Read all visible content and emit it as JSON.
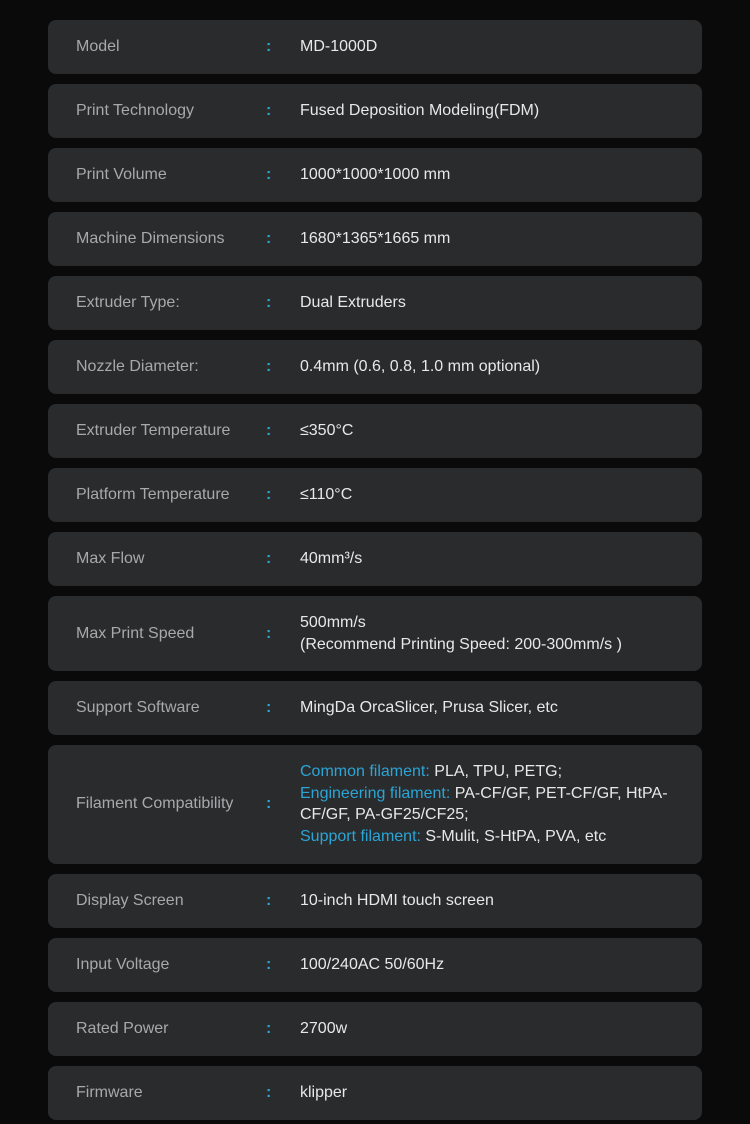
{
  "styling": {
    "background_color": "#0a0a0a",
    "row_background": "#2a2b2d",
    "row_border_radius": 8,
    "row_margin_bottom": 10,
    "row_padding_v": 16,
    "row_padding_h": 28,
    "label_color": "#a8a9ab",
    "value_color": "#e8e8e8",
    "accent_color": "#2aa5d6",
    "font_size": 16,
    "label_width": 190,
    "colon_width": 34
  },
  "specs": {
    "model": {
      "label": "Model",
      "value": "MD-1000D"
    },
    "print_technology": {
      "label": "Print Technology",
      "value": "Fused Deposition Modeling(FDM)"
    },
    "print_volume": {
      "label": "Print Volume",
      "value": "1000*1000*1000 mm"
    },
    "machine_dimensions": {
      "label": "Machine Dimensions",
      "value": "1680*1365*1665 mm"
    },
    "extruder_type": {
      "label": "Extruder Type:",
      "value": "Dual Extruders"
    },
    "nozzle_diameter": {
      "label": "Nozzle Diameter:",
      "value": "0.4mm (0.6, 0.8, 1.0 mm optional)"
    },
    "extruder_temperature": {
      "label": "Extruder Temperature",
      "value": "≤350°C"
    },
    "platform_temperature": {
      "label": "Platform Temperature",
      "value": "≤110°C"
    },
    "max_flow": {
      "label": "Max Flow",
      "value": "40mm³/s"
    },
    "max_print_speed": {
      "label": "Max Print Speed",
      "value_line1": "500mm/s",
      "value_line2": "(Recommend Printing Speed: 200-300mm/s )"
    },
    "support_software": {
      "label": "Support Software",
      "value": "MingDa OrcaSlicer, Prusa Slicer, etc"
    },
    "filament_compatibility": {
      "label": "Filament Compatibility",
      "common_label": "Common filament: ",
      "common_value": "PLA, TPU, PETG;",
      "engineering_label": "Engineering filament: ",
      "engineering_value": "PA-CF/GF, PET-CF/GF, HtPA-CF/GF, PA-GF25/CF25;",
      "support_label": "Support filament: ",
      "support_value": "S-Mulit, S-HtPA, PVA, etc"
    },
    "display_screen": {
      "label": "Display Screen",
      "value": "10-inch HDMI touch screen"
    },
    "input_voltage": {
      "label": "Input Voltage",
      "value": "100/240AC 50/60Hz"
    },
    "rated_power": {
      "label": "Rated Power",
      "value": "2700w"
    },
    "firmware": {
      "label": "Firmware",
      "value": "klipper"
    }
  }
}
